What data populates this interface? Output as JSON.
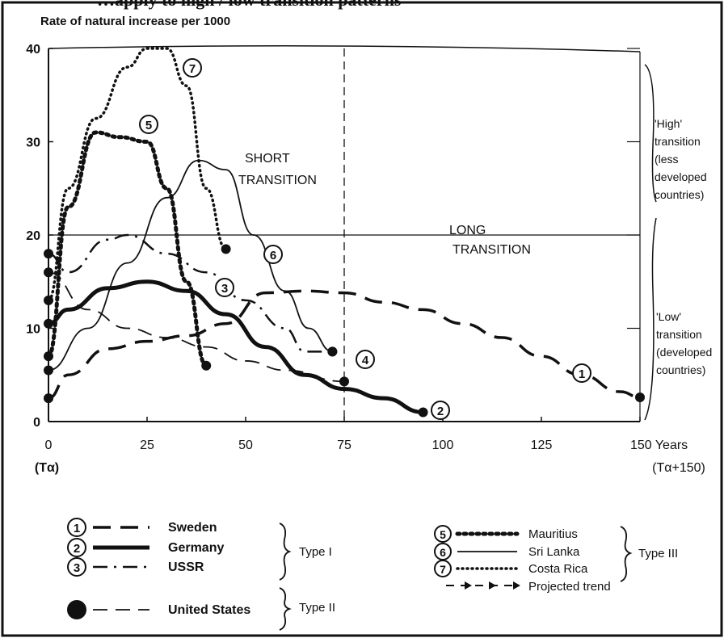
{
  "header_text": "…apply to high / low transition patterns",
  "chart_data": {
    "type": "line",
    "title": "",
    "ylabel": "Rate of natural increase per 1000",
    "xlabel": "Years",
    "x_ticks": [
      "0",
      "25",
      "50",
      "75",
      "100",
      "125",
      "150"
    ],
    "y_ticks": [
      "0",
      "10",
      "20",
      "30",
      "40"
    ],
    "x_start_label": "(Tα)",
    "x_end_label": "(Tα+150)",
    "xlim": [
      0,
      150
    ],
    "ylim": [
      0,
      40
    ],
    "annotations": {
      "short_transition": [
        "SHORT",
        "TRANSITION"
      ],
      "long_transition": [
        "LONG",
        "TRANSITION"
      ],
      "high_transition": [
        "'High'",
        "transition",
        "(less",
        "developed",
        "countries)"
      ],
      "low_transition": [
        "'Low'",
        "transition",
        "(developed",
        "countries)"
      ]
    },
    "series": [
      {
        "id": "1",
        "name": "Sweden",
        "type_group": "Type I",
        "style": "dashed",
        "color": "#111111",
        "x": [
          0,
          5,
          15,
          25,
          35,
          45,
          55,
          65,
          75,
          85,
          95,
          105,
          115,
          125,
          135,
          145,
          150
        ],
        "y": [
          2.5,
          5,
          7.8,
          8.6,
          9.2,
          10.5,
          13.8,
          14,
          13.8,
          12.8,
          12,
          10.5,
          9,
          7,
          5,
          3.2,
          2.6
        ]
      },
      {
        "id": "2",
        "name": "Germany",
        "type_group": "Type I",
        "style": "solid-thick",
        "color": "#111111",
        "x": [
          0,
          5,
          15,
          25,
          35,
          45,
          55,
          65,
          75,
          85,
          95
        ],
        "y": [
          10.5,
          12,
          14.3,
          15,
          14,
          11.5,
          8,
          5,
          3.5,
          2.5,
          1
        ]
      },
      {
        "id": "3",
        "name": "USSR",
        "type_group": "Type I",
        "style": "dash-dot",
        "color": "#111111",
        "x": [
          0,
          5,
          15,
          20,
          30,
          40,
          50,
          60,
          65,
          72
        ],
        "y": [
          18,
          16,
          19.5,
          20,
          18,
          16,
          13,
          10,
          7.5,
          7.5
        ]
      },
      {
        "id": "4",
        "name": "United States",
        "type_group": "Type II",
        "style": "long-dash",
        "color": "#111111",
        "x": [
          0,
          10,
          20,
          30,
          40,
          50,
          60,
          75
        ],
        "y": [
          16,
          12,
          10,
          9,
          8,
          6.5,
          5.5,
          4.3
        ]
      },
      {
        "id": "5",
        "name": "Mauritius",
        "type_group": "Type III",
        "style": "dotted-thick",
        "color": "#111111",
        "x": [
          0,
          5,
          12,
          18,
          25,
          30,
          35,
          40
        ],
        "y": [
          7,
          23,
          31,
          30.5,
          30,
          25,
          15,
          6
        ]
      },
      {
        "id": "6",
        "name": "Sri Lanka",
        "type_group": "Type III",
        "style": "solid",
        "color": "#111111",
        "x": [
          0,
          10,
          20,
          30,
          38,
          45,
          52,
          60,
          66,
          72
        ],
        "y": [
          5.5,
          10,
          17,
          24,
          28,
          27,
          20,
          14,
          10,
          7.5
        ]
      },
      {
        "id": "7",
        "name": "Costa Rica",
        "type_group": "Type III",
        "style": "dotted",
        "color": "#111111",
        "x": [
          0,
          5,
          12,
          20,
          25,
          30,
          35,
          40,
          45
        ],
        "y": [
          13,
          25,
          32.5,
          38,
          40,
          40,
          36,
          25,
          18.5
        ]
      }
    ],
    "legend": {
      "groups": [
        {
          "label": "Type I",
          "items": [
            {
              "marker": "1",
              "name": "Sweden"
            },
            {
              "marker": "2",
              "name": "Germany"
            },
            {
              "marker": "3",
              "name": "USSR"
            }
          ]
        },
        {
          "label": "Type II",
          "items": [
            {
              "marker": "4",
              "name": "United States"
            }
          ]
        },
        {
          "label": "Type III",
          "items": [
            {
              "marker": "5",
              "name": "Mauritius"
            },
            {
              "marker": "6",
              "name": "Sri Lanka"
            },
            {
              "marker": "7",
              "name": "Costa Rica"
            }
          ]
        }
      ],
      "extra": "Projected trend"
    },
    "grid": false
  }
}
